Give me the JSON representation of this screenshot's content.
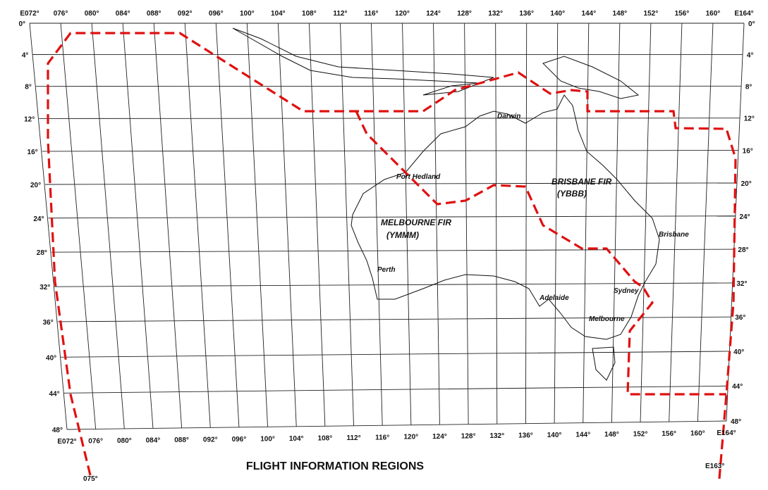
{
  "title": "FLIGHT INFORMATION REGIONS",
  "top_longitudes": [
    "E072°",
    "076°",
    "080°",
    "084°",
    "088°",
    "092°",
    "096°",
    "100°",
    "104°",
    "108°",
    "112°",
    "116°",
    "120°",
    "124°",
    "128°",
    "132°",
    "136°",
    "140°",
    "144°",
    "148°",
    "152°",
    "156°",
    "160°",
    "E164°"
  ],
  "bottom_longitudes": [
    "E072°",
    "076°",
    "080°",
    "084°",
    "088°",
    "092°",
    "096°",
    "100°",
    "104°",
    "108°",
    "112°",
    "116°",
    "120°",
    "124°",
    "128°",
    "132°",
    "136°",
    "140°",
    "144°",
    "148°",
    "152°",
    "156°",
    "160°",
    "E164°"
  ],
  "left_latitudes": [
    "0°",
    "4°",
    "8°",
    "12°",
    "16°",
    "20°",
    "24°",
    "28°",
    "32°",
    "36°",
    "40°",
    "44°",
    "48°"
  ],
  "right_latitudes": [
    "0°",
    "4°",
    "8°",
    "12°",
    "16°",
    "20°",
    "24°",
    "28°",
    "32°",
    "36°",
    "40°",
    "44°",
    "48°"
  ],
  "boundary_labels": [
    "075°",
    "E163°"
  ],
  "regions": [
    {
      "name": "MELBOURNE FIR",
      "code": "(YMMM)"
    },
    {
      "name": "BRISBANE FIR",
      "code": "(YBBB)"
    }
  ],
  "cities": [
    "Darwin",
    "Port Hedland",
    "Brisbane",
    "Perth",
    "Sydney",
    "Adelaide",
    "Melbourne"
  ]
}
